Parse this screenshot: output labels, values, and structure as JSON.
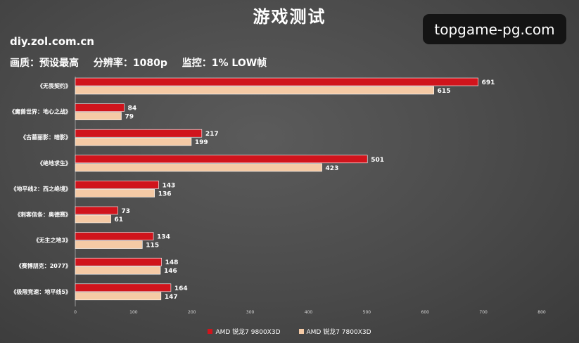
{
  "title": "游戏测试",
  "source": "diy.zol.com.cn",
  "subtitle": {
    "quality": "画质：预设最高",
    "resolution": "分辨率：1080p",
    "monitor": "监控：1% LOW帧"
  },
  "watermark": "topgame-pg.com",
  "colors": {
    "series1": "#d0141c",
    "series2": "#f5caa5"
  },
  "chart_data": {
    "type": "bar",
    "orientation": "horizontal",
    "categories": [
      "《无畏契约》",
      "《魔兽世界：地心之战》",
      "《古墓丽影：暗影》",
      "《绝地求生》",
      "《地平线2：西之绝境》",
      "《刺客信条：奥德赛》",
      "《无主之地3》",
      "《赛博朋克：2077》",
      "《极限竞速：地平线5》"
    ],
    "series": [
      {
        "name": "AMD 锐龙7 9800X3D",
        "values": [
          691,
          84,
          217,
          501,
          143,
          73,
          134,
          148,
          164
        ]
      },
      {
        "name": "AMD 锐龙7 7800X3D",
        "values": [
          615,
          79,
          199,
          423,
          136,
          61,
          115,
          146,
          147
        ]
      }
    ],
    "xlim": [
      0,
      800
    ],
    "xticks": [
      "0",
      "100",
      "200",
      "300",
      "400",
      "500",
      "600",
      "700",
      "800"
    ],
    "grid": false,
    "legend": "bottom"
  }
}
